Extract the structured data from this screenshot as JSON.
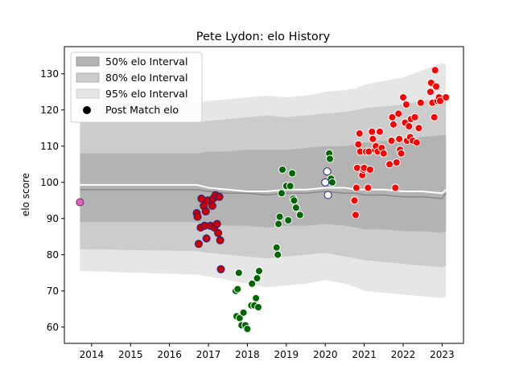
{
  "chart_data": {
    "type": "scatter",
    "title": "Pete Lydon: elo History",
    "xlabel": "",
    "ylabel": "elo score",
    "xlim": [
      2013.3,
      2023.55
    ],
    "ylim": [
      55.5,
      137.5
    ],
    "xticks": [
      2014,
      2015,
      2016,
      2017,
      2018,
      2019,
      2020,
      2021,
      2022,
      2023
    ],
    "yticks": [
      60,
      70,
      80,
      90,
      100,
      110,
      120,
      130
    ],
    "legend": {
      "placement": "top-left",
      "entries": [
        {
          "label": "50% elo Interval",
          "color": "#b3b3b3"
        },
        {
          "label": "80% elo Interval",
          "color": "#cccccc"
        },
        {
          "label": "95% elo Interval",
          "color": "#e6e6e6"
        },
        {
          "label": "Post Match elo",
          "color": "#000000"
        }
      ]
    },
    "bands": {
      "x": [
        2013.7,
        2016.7,
        2017.0,
        2017.5,
        2018.0,
        2018.5,
        2019.0,
        2019.5,
        2020.0,
        2020.5,
        2020.8,
        2021.0,
        2021.5,
        2022.0,
        2022.5,
        2023.0,
        2023.1
      ],
      "p95_low": [
        75.5,
        74.5,
        74.0,
        73.0,
        72.0,
        71.0,
        71.5,
        72.0,
        73.0,
        72.0,
        71.0,
        70.0,
        69.5,
        69.0,
        68.5,
        68.0,
        68.5
      ],
      "p95_high": [
        121.5,
        122.0,
        122.5,
        123.0,
        123.5,
        124.0,
        123.5,
        124.0,
        125.0,
        125.5,
        126.0,
        127.0,
        128.0,
        129.0,
        131.0,
        133.0,
        132.5
      ],
      "p80_low": [
        81.5,
        81.0,
        80.5,
        80.0,
        79.5,
        79.0,
        79.5,
        80.0,
        80.5,
        79.5,
        79.0,
        78.5,
        78.0,
        77.5,
        77.0,
        76.5,
        77.0
      ],
      "p80_high": [
        116.5,
        116.5,
        117.0,
        117.5,
        118.0,
        118.5,
        118.0,
        118.5,
        119.0,
        119.5,
        120.0,
        120.5,
        121.0,
        121.5,
        122.5,
        123.5,
        123.0
      ],
      "p50_low": [
        89.0,
        89.0,
        88.5,
        88.0,
        88.0,
        87.5,
        88.0,
        88.0,
        88.5,
        88.0,
        87.5,
        87.0,
        87.0,
        86.5,
        86.5,
        86.0,
        86.5
      ],
      "p50_high": [
        108.0,
        108.0,
        108.5,
        108.5,
        109.0,
        109.0,
        109.0,
        109.5,
        110.0,
        110.0,
        110.5,
        111.0,
        111.5,
        112.0,
        112.5,
        113.0,
        113.0
      ],
      "median": [
        98.0,
        98.0,
        97.5,
        97.0,
        97.0,
        96.5,
        97.0,
        97.0,
        97.5,
        97.0,
        97.0,
        96.5,
        96.5,
        96.0,
        96.0,
        95.5,
        97.0
      ],
      "mean": [
        99.3,
        99.3,
        98.5,
        98.0,
        97.5,
        97.5,
        98.0,
        98.0,
        98.5,
        98.5,
        98.0,
        98.0,
        98.0,
        97.5,
        97.5,
        97.0,
        98.0
      ]
    },
    "series": [
      {
        "label": "",
        "fill": "#dd66bb",
        "edge": "#7a1a6a",
        "points": [
          [
            2013.7,
            94.5
          ]
        ]
      },
      {
        "label": "",
        "fill": "#cc0000",
        "edge": "#202080",
        "points": [
          [
            2016.7,
            91.5
          ],
          [
            2016.72,
            90.5
          ],
          [
            2016.75,
            83.0
          ],
          [
            2016.8,
            87.5
          ],
          [
            2016.82,
            95.5
          ],
          [
            2016.88,
            93.5
          ],
          [
            2016.9,
            88.0
          ],
          [
            2016.93,
            92.0
          ],
          [
            2016.95,
            84.5
          ],
          [
            2016.98,
            95.0
          ],
          [
            2017.05,
            88.0
          ],
          [
            2017.1,
            93.5
          ],
          [
            2017.12,
            95.5
          ],
          [
            2017.15,
            87.5
          ],
          [
            2017.18,
            96.5
          ],
          [
            2017.22,
            88.5
          ],
          [
            2017.25,
            86.0
          ],
          [
            2017.28,
            96.0
          ],
          [
            2017.3,
            84.0
          ],
          [
            2017.32,
            76.0
          ]
        ]
      },
      {
        "label": "",
        "fill": "#006600",
        "edge": "#ffffff",
        "points": [
          [
            2017.7,
            70.0
          ],
          [
            2017.72,
            63.0
          ],
          [
            2017.75,
            70.5
          ],
          [
            2017.78,
            75.0
          ],
          [
            2017.8,
            62.5
          ],
          [
            2017.85,
            60.5
          ],
          [
            2017.9,
            64.0
          ],
          [
            2017.95,
            60.5
          ],
          [
            2018.0,
            59.5
          ],
          [
            2018.1,
            66.0
          ],
          [
            2018.12,
            72.0
          ],
          [
            2018.18,
            66.0
          ],
          [
            2018.22,
            68.0
          ],
          [
            2018.25,
            73.5
          ],
          [
            2018.28,
            65.5
          ],
          [
            2018.3,
            75.5
          ],
          [
            2018.75,
            82.0
          ],
          [
            2018.78,
            80.0
          ],
          [
            2018.8,
            88.5
          ],
          [
            2018.83,
            90.5
          ],
          [
            2018.88,
            97.0
          ],
          [
            2018.9,
            103.5
          ],
          [
            2019.0,
            99.0
          ],
          [
            2019.05,
            89.5
          ],
          [
            2019.1,
            99.0
          ],
          [
            2019.15,
            102.5
          ],
          [
            2019.18,
            95.5
          ],
          [
            2019.2,
            95.0
          ],
          [
            2019.25,
            93.0
          ],
          [
            2019.35,
            91.0
          ],
          [
            2020.1,
            108.0
          ],
          [
            2020.12,
            106.5
          ],
          [
            2020.15,
            101.0
          ],
          [
            2020.18,
            100.0
          ]
        ]
      },
      {
        "label": "",
        "fill": "#ffffff",
        "edge": "#202080",
        "points": [
          [
            2020.0,
            100.0
          ],
          [
            2020.05,
            103.0
          ],
          [
            2020.07,
            96.5
          ]
        ]
      },
      {
        "label": "",
        "fill": "#ff0000",
        "edge": "#ffffff",
        "points": [
          [
            2020.75,
            95.0
          ],
          [
            2020.78,
            91.0
          ],
          [
            2020.8,
            98.5
          ],
          [
            2020.82,
            104.0
          ],
          [
            2020.85,
            110.5
          ],
          [
            2020.88,
            113.5
          ],
          [
            2020.9,
            108.5
          ],
          [
            2020.95,
            102.0
          ],
          [
            2020.98,
            103.5
          ],
          [
            2021.0,
            104.0
          ],
          [
            2021.05,
            108.5
          ],
          [
            2021.1,
            98.5
          ],
          [
            2021.12,
            108.5
          ],
          [
            2021.15,
            103.5
          ],
          [
            2021.2,
            114.0
          ],
          [
            2021.22,
            112.0
          ],
          [
            2021.28,
            109.0
          ],
          [
            2021.3,
            110.0
          ],
          [
            2021.35,
            108.5
          ],
          [
            2021.4,
            114.0
          ],
          [
            2021.45,
            109.5
          ],
          [
            2021.5,
            108.0
          ],
          [
            2021.65,
            105.0
          ],
          [
            2021.7,
            111.5
          ],
          [
            2021.72,
            118.0
          ],
          [
            2021.75,
            116.0
          ],
          [
            2021.8,
            98.5
          ],
          [
            2021.83,
            105.5
          ],
          [
            2021.88,
            119.0
          ],
          [
            2021.9,
            112.0
          ],
          [
            2021.92,
            109.0
          ],
          [
            2021.95,
            108.0
          ],
          [
            2022.0,
            123.5
          ],
          [
            2022.05,
            116.5
          ],
          [
            2022.08,
            121.5
          ],
          [
            2022.1,
            111.5
          ],
          [
            2022.15,
            115.5
          ],
          [
            2022.18,
            112.5
          ],
          [
            2022.2,
            117.5
          ],
          [
            2022.25,
            111.5
          ],
          [
            2022.3,
            118.0
          ],
          [
            2022.35,
            111.0
          ],
          [
            2022.4,
            115.0
          ],
          [
            2022.45,
            122.0
          ],
          [
            2022.7,
            125.0
          ],
          [
            2022.72,
            127.5
          ],
          [
            2022.75,
            122.0
          ],
          [
            2022.8,
            118.0
          ],
          [
            2022.82,
            131.0
          ],
          [
            2022.85,
            126.5
          ],
          [
            2022.88,
            122.5
          ],
          [
            2022.92,
            123.5
          ],
          [
            2022.95,
            122.5
          ],
          [
            2023.1,
            123.5
          ]
        ]
      }
    ]
  }
}
